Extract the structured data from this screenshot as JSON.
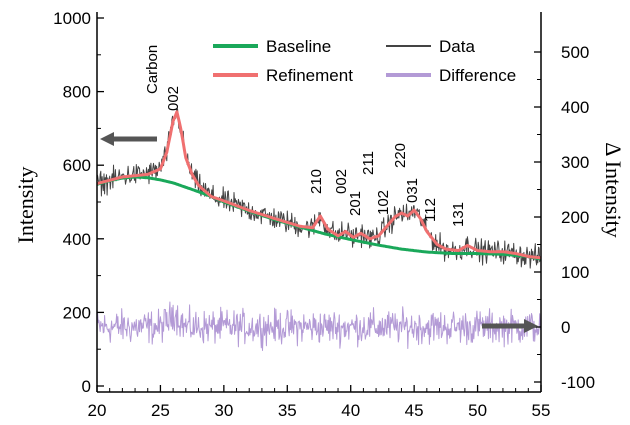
{
  "chart_data": {
    "type": "line",
    "xlim": [
      20,
      55
    ],
    "ylim_left": [
      0,
      1000
    ],
    "ylim_right": [
      -110,
      560
    ],
    "x_ticks": [
      "20",
      "25",
      "30",
      "35",
      "40",
      "45",
      "50",
      "55"
    ],
    "y_left_ticks": [
      "0",
      "200",
      "400",
      "600",
      "800",
      "1000"
    ],
    "y_right_ticks": [
      "-100",
      "0",
      "100",
      "200",
      "300",
      "400",
      "500"
    ],
    "ylabel_left": "Intensity",
    "ylabel_right": "Δ Intensity",
    "legend_position": "top",
    "legend": [
      {
        "name": "Baseline",
        "color": "#1aa85a"
      },
      {
        "name": "Data",
        "color": "#444444"
      },
      {
        "name": "Refinement",
        "color": "#f07070"
      },
      {
        "name": "Difference",
        "color": "#b39ad6"
      }
    ],
    "peak_labels": [
      {
        "text": "Carbon",
        "x": 25.6
      },
      {
        "text": "002",
        "x": 26.3
      },
      {
        "text": "210",
        "x": 37.6
      },
      {
        "text": "002",
        "x": 39.6
      },
      {
        "text": "201",
        "x": 40.8
      },
      {
        "text": "211",
        "x": 42.2
      },
      {
        "text": "102",
        "x": 43.2
      },
      {
        "text": "220",
        "x": 44.4
      },
      {
        "text": "031",
        "x": 45.2
      },
      {
        "text": "112",
        "x": 46.8
      },
      {
        "text": "131",
        "x": 49.2
      }
    ],
    "series": [
      {
        "name": "Baseline",
        "axis": "left",
        "x": [
          20,
          21,
          22,
          23,
          24,
          25,
          26,
          27,
          28,
          29,
          30,
          32,
          34,
          36,
          38,
          40,
          42,
          44,
          46,
          48,
          50,
          52,
          54,
          55
        ],
        "values": [
          548,
          558,
          565,
          568,
          566,
          560,
          552,
          540,
          528,
          515,
          500,
          475,
          452,
          432,
          413,
          398,
          384,
          372,
          364,
          360,
          360,
          358,
          352,
          345
        ]
      },
      {
        "name": "Refinement",
        "axis": "left",
        "x": [
          20,
          22,
          24,
          25,
          25.5,
          26,
          26.3,
          26.6,
          27,
          27.5,
          28,
          29,
          30,
          32,
          34,
          36,
          37,
          37.6,
          38.2,
          39,
          39.6,
          40.2,
          40.8,
          41.5,
          42.2,
          43,
          43.5,
          44,
          44.5,
          45,
          45.5,
          46,
          46.8,
          47.5,
          48.5,
          49.2,
          50,
          51,
          52,
          53,
          54,
          55
        ],
        "values": [
          550,
          568,
          575,
          590,
          635,
          720,
          745,
          700,
          620,
          575,
          545,
          515,
          503,
          477,
          455,
          434,
          430,
          462,
          426,
          408,
          420,
          404,
          415,
          400,
          408,
          440,
          460,
          470,
          462,
          478,
          455,
          420,
          385,
          372,
          368,
          382,
          368,
          365,
          365,
          360,
          352,
          348
        ]
      },
      {
        "name": "Data",
        "axis": "left",
        "x": [
          20,
          21,
          22,
          23,
          24,
          25,
          25.5,
          26,
          26.3,
          26.6,
          27,
          27.5,
          28,
          29,
          30,
          31,
          32,
          33,
          34,
          35,
          36,
          37,
          37.6,
          38.2,
          39,
          39.6,
          40.2,
          40.8,
          41.5,
          42.2,
          43,
          43.5,
          44,
          44.5,
          45,
          45.5,
          46,
          46.8,
          47.5,
          48.5,
          49.2,
          50,
          51,
          52,
          53,
          54,
          55
        ],
        "values": [
          550,
          558,
          570,
          574,
          576,
          590,
          635,
          720,
          745,
          700,
          620,
          575,
          545,
          515,
          503,
          490,
          477,
          466,
          455,
          445,
          434,
          430,
          462,
          426,
          408,
          420,
          404,
          415,
          400,
          408,
          440,
          460,
          470,
          462,
          478,
          455,
          420,
          385,
          372,
          368,
          382,
          368,
          365,
          365,
          360,
          352,
          348
        ],
        "noise_amplitude": 45
      },
      {
        "name": "Difference",
        "axis": "right",
        "x": [
          20,
          25,
          25.8,
          26,
          26.3,
          26.6,
          27,
          30,
          35,
          40,
          45,
          50,
          55
        ],
        "values": [
          0,
          0,
          15,
          30,
          20,
          10,
          0,
          0,
          0,
          0,
          0,
          0,
          0
        ],
        "noise_amplitude": 45
      }
    ]
  }
}
